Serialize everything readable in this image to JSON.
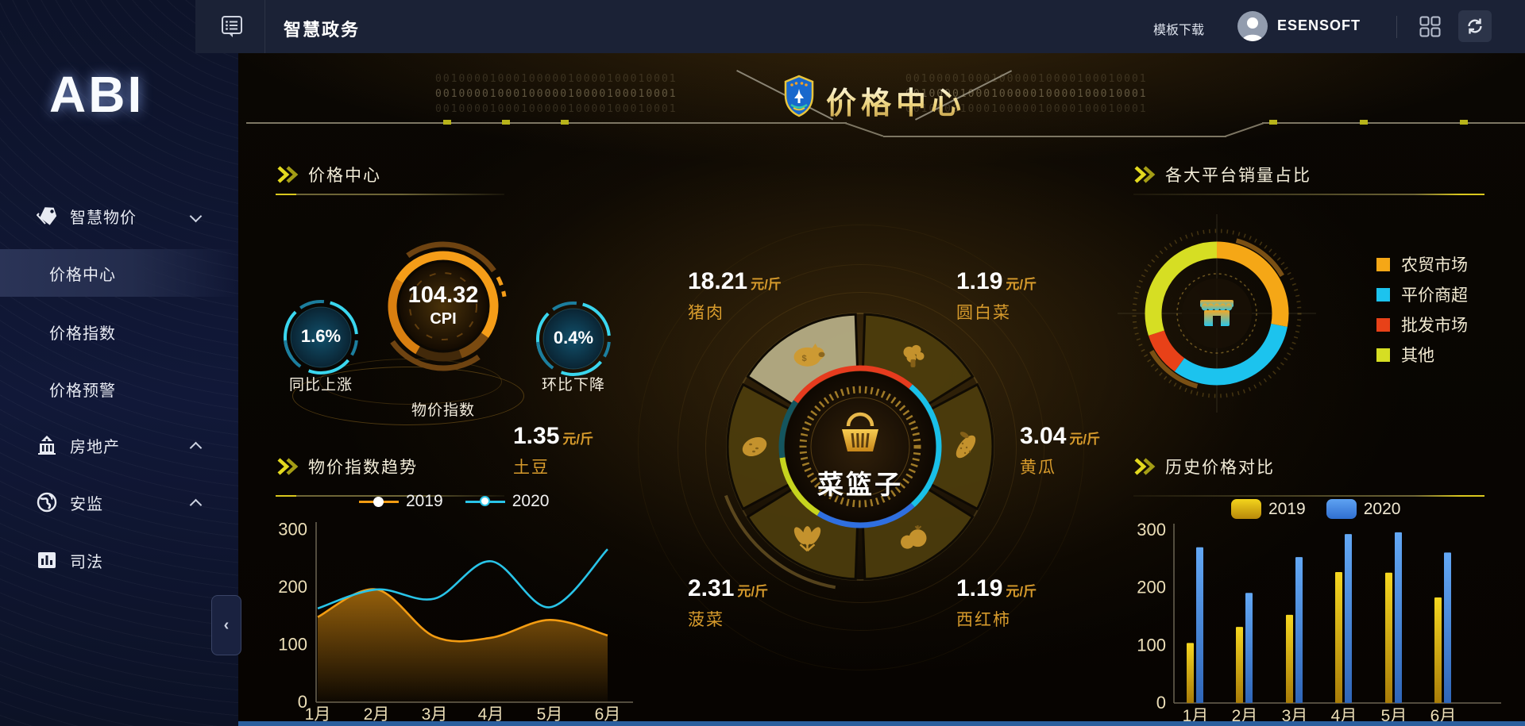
{
  "topbar": {
    "title": "智慧政务",
    "template_download": "模板下载",
    "username": "ESENSOFT"
  },
  "sidebar": {
    "logo": "ABI",
    "items": [
      {
        "label": "智慧物价",
        "icon": "tag-icon",
        "chevron": "down",
        "expanded": true
      },
      {
        "label": "价格中心",
        "active": true
      },
      {
        "label": "价格指数"
      },
      {
        "label": "价格预警"
      },
      {
        "label": "房地产",
        "icon": "building-icon",
        "chevron": "up"
      },
      {
        "label": "安监",
        "icon": "globe-icon",
        "chevron": "up"
      },
      {
        "label": "司法",
        "icon": "barchart-icon"
      }
    ],
    "collapse_icon": "‹"
  },
  "banner": {
    "title": "价格中心",
    "badge": "police-shield-icon",
    "binary_line": "0010000100010000010000100010001"
  },
  "panels": {
    "price_center": {
      "title": "价格中心",
      "cpi_value": "104.32",
      "cpi_label": "CPI",
      "gauge_label": "物价指数",
      "yoy_value": "1.6%",
      "yoy_label": "同比上涨",
      "mom_value": "0.4%",
      "mom_label": "环比下降"
    },
    "trend": {
      "title": "物价指数趋势"
    },
    "platform": {
      "title": "各大平台销量占比"
    },
    "history": {
      "title": "历史价格对比"
    }
  },
  "basket": {
    "center_label": "菜篮子",
    "unit": "元/斤",
    "items": [
      {
        "name": "猪肉",
        "price": "18.21",
        "icon": "pig-icon",
        "highlighted": true
      },
      {
        "name": "圆白菜",
        "price": "1.19",
        "icon": "cabbage-icon"
      },
      {
        "name": "黄瓜",
        "price": "3.04",
        "icon": "cucumber-icon"
      },
      {
        "name": "西红柿",
        "price": "1.19",
        "icon": "tomato-icon"
      },
      {
        "name": "菠菜",
        "price": "2.31",
        "icon": "spinach-icon"
      },
      {
        "name": "土豆",
        "price": "1.35",
        "icon": "potato-icon"
      }
    ]
  },
  "chart_data": [
    {
      "type": "line",
      "title": "物价指数趋势",
      "categories": [
        "1月",
        "2月",
        "3月",
        "4月",
        "5月",
        "6月"
      ],
      "series": [
        {
          "name": "2019",
          "color": "#F39C12",
          "area": true,
          "values": [
            148,
            196,
            114,
            112,
            143,
            116
          ]
        },
        {
          "name": "2020",
          "color": "#29C4E8",
          "values": [
            163,
            196,
            180,
            245,
            165,
            266
          ]
        }
      ],
      "ylim": [
        0,
        300
      ],
      "yticks": [
        0,
        100,
        200,
        300
      ],
      "grid": false,
      "legend_position": "top"
    },
    {
      "type": "bar",
      "title": "历史价格对比",
      "categories": [
        "1月",
        "2月",
        "3月",
        "4月",
        "5月",
        "6月"
      ],
      "series": [
        {
          "name": "2019",
          "color": "#E8C812",
          "values": [
            104,
            132,
            153,
            227,
            226,
            183
          ]
        },
        {
          "name": "2020",
          "color": "#4E97E8",
          "values": [
            270,
            191,
            253,
            293,
            296,
            261
          ]
        }
      ],
      "ylim": [
        0,
        300
      ],
      "yticks": [
        0,
        100,
        200,
        300
      ],
      "grid": false,
      "legend_position": "top"
    },
    {
      "type": "pie",
      "title": "各大平台销量占比",
      "labels": [
        "农贸市场",
        "平价商超",
        "批发市场",
        "其他"
      ],
      "values": [
        28,
        32,
        10,
        30
      ],
      "colors": [
        "#F5A716",
        "#1CC3EE",
        "#E84118",
        "#D6DE23"
      ],
      "legend_position": "right"
    }
  ]
}
